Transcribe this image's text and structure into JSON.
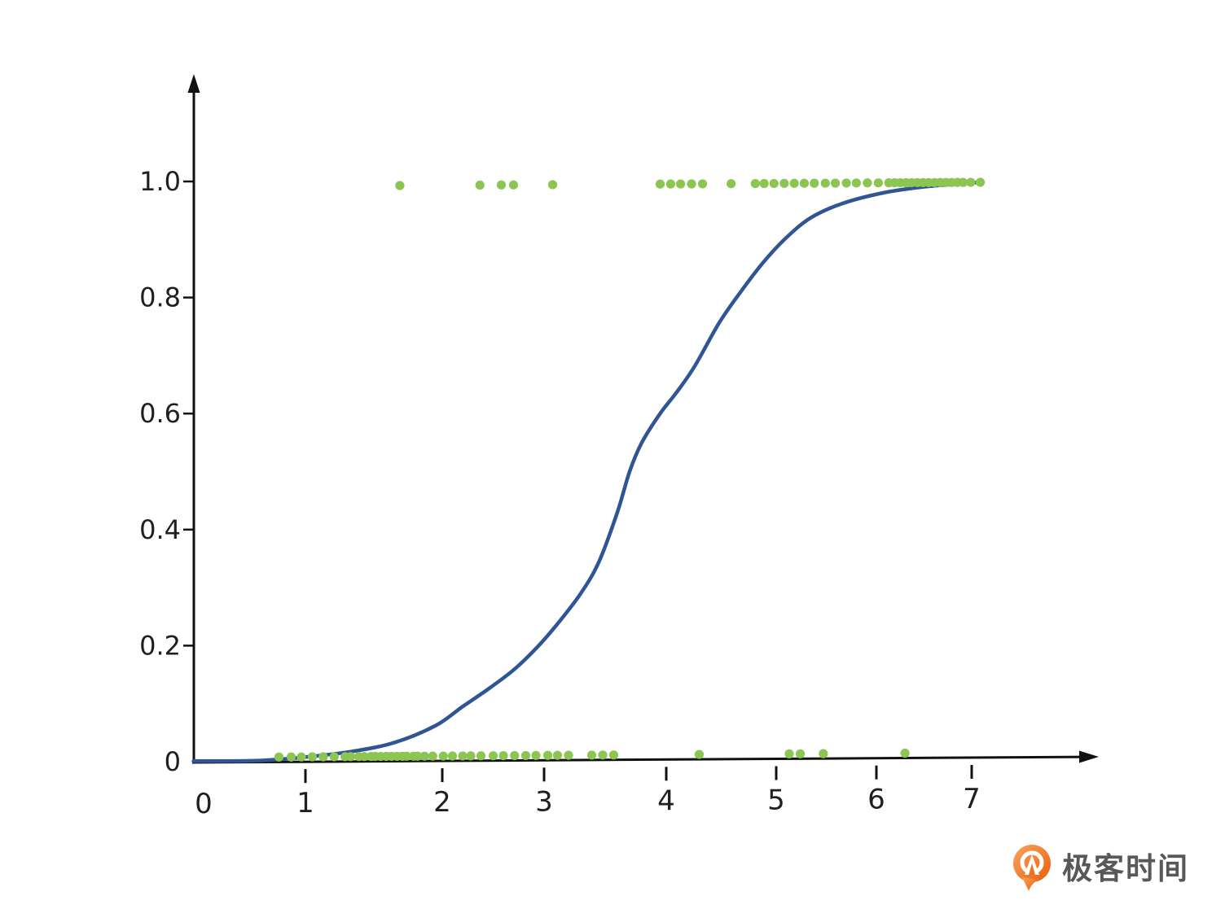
{
  "page": {
    "background": "#ffffff"
  },
  "branding": {
    "logo_text": "极客时间",
    "logo_text_color": "#595757",
    "logo_icon": "geektime-orange-pin",
    "logo_icon_gradient": [
      "#f9a55e",
      "#e95d0c"
    ]
  },
  "chart_data": {
    "type": "scatter",
    "title": "",
    "xlabel": "",
    "ylabel": "",
    "xlim": [
      0,
      7.8
    ],
    "ylim": [
      0,
      1.15
    ],
    "grid": false,
    "legend": false,
    "axis_color": "#111111",
    "point_color": "#8cc552",
    "curve_color": "#2f5693",
    "x_ticks": [
      0,
      1,
      2,
      3,
      4,
      5,
      6,
      7
    ],
    "x_tick_labels": [
      "0",
      "1",
      "2",
      "3",
      "4",
      "5",
      "6",
      "7"
    ],
    "y_ticks": [
      0,
      0.2,
      0.4,
      0.6,
      0.8,
      1.0
    ],
    "y_tick_labels": [
      "0",
      "0.2",
      "0.4",
      "0.6",
      "0.8",
      "1.0"
    ],
    "series": [
      {
        "name": "negative-class-points",
        "type": "scatter",
        "y_value": 0,
        "x": [
          0.74,
          0.86,
          0.96,
          1.05,
          1.13,
          1.21,
          1.29,
          1.33,
          1.39,
          1.43,
          1.48,
          1.51,
          1.55,
          1.59,
          1.63,
          1.67,
          1.71,
          1.74,
          1.79,
          1.82,
          1.87,
          1.93,
          2.01,
          2.1,
          2.2,
          2.28,
          2.38,
          2.5,
          2.6,
          2.71,
          2.82,
          2.92,
          3.03,
          3.11,
          3.2,
          3.39,
          3.48,
          3.57,
          4.3,
          5.13,
          5.24,
          5.47,
          6.3
        ]
      },
      {
        "name": "positive-class-points",
        "type": "scatter",
        "y_value": 1,
        "x": [
          1.69,
          2.37,
          2.58,
          2.7,
          3.07,
          3.95,
          4.04,
          4.13,
          4.23,
          4.33,
          4.59,
          4.81,
          4.89,
          4.98,
          5.08,
          5.18,
          5.28,
          5.38,
          5.49,
          5.59,
          5.7,
          5.8,
          5.91,
          6.02,
          6.13,
          6.19,
          6.25,
          6.31,
          6.37,
          6.43,
          6.49,
          6.55,
          6.61,
          6.67,
          6.73,
          6.79,
          6.85,
          6.91,
          6.99,
          7.09
        ]
      },
      {
        "name": "logistic-fit-curve",
        "type": "line",
        "points": [
          [
            -0.1,
            0.001
          ],
          [
            0.55,
            0.002
          ],
          [
            1.0,
            0.008
          ],
          [
            1.35,
            0.018
          ],
          [
            1.65,
            0.033
          ],
          [
            1.95,
            0.062
          ],
          [
            2.2,
            0.095
          ],
          [
            2.45,
            0.125
          ],
          [
            2.7,
            0.158
          ],
          [
            2.92,
            0.195
          ],
          [
            3.1,
            0.235
          ],
          [
            3.3,
            0.29
          ],
          [
            3.45,
            0.345
          ],
          [
            3.6,
            0.43
          ],
          [
            3.7,
            0.5
          ],
          [
            3.8,
            0.55
          ],
          [
            3.95,
            0.6
          ],
          [
            4.1,
            0.638
          ],
          [
            4.26,
            0.682
          ],
          [
            4.48,
            0.756
          ],
          [
            4.67,
            0.808
          ],
          [
            4.88,
            0.86
          ],
          [
            5.1,
            0.903
          ],
          [
            5.35,
            0.938
          ],
          [
            5.66,
            0.962
          ],
          [
            6.06,
            0.98
          ],
          [
            6.46,
            0.99
          ],
          [
            6.8,
            0.995
          ],
          [
            7.1,
            0.999
          ]
        ]
      }
    ]
  }
}
